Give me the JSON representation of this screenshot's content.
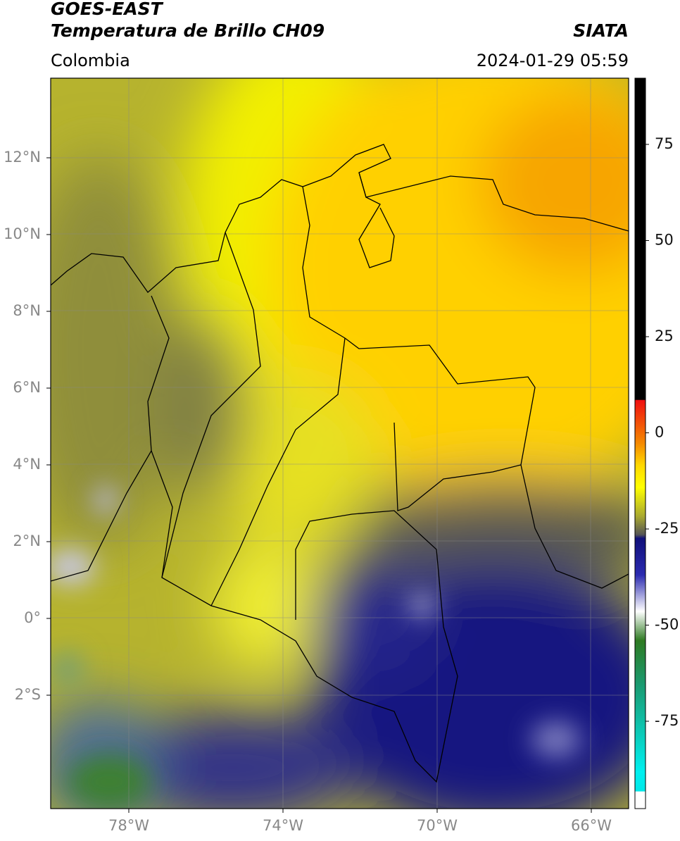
{
  "header": {
    "title_line1": "GOES-EAST",
    "title_line2": "Temperatura de Brillo CH09",
    "source": "SIATA",
    "region": "Colombia",
    "datetime": "2024-01-29 05:59"
  },
  "map": {
    "lon_ticks": [
      "78°W",
      "74°W",
      "70°W",
      "66°W"
    ],
    "lat_ticks": [
      "12°N",
      "10°N",
      "8°N",
      "6°N",
      "4°N",
      "2°N",
      "0°",
      "2°S"
    ]
  },
  "colorbar": {
    "ticks": [
      "75",
      "50",
      "25",
      "0",
      "-25",
      "-50",
      "-75"
    ]
  }
}
